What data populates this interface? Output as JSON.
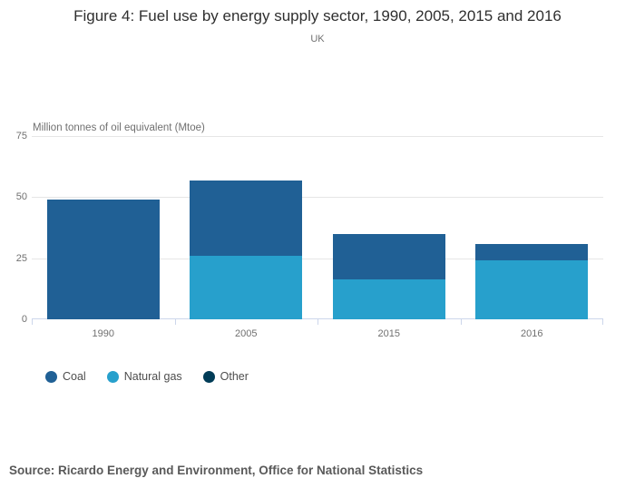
{
  "header": {
    "title": "Figure 4: Fuel use by energy supply sector, 1990, 2005, 2015 and 2016",
    "subtitle": "UK"
  },
  "chart_data": {
    "type": "bar",
    "stacked": true,
    "title": "Figure 4: Fuel use by energy supply sector, 1990, 2005, 2015 and 2016",
    "subtitle": "UK",
    "categories": [
      "1990",
      "2005",
      "2015",
      "2016"
    ],
    "series": [
      {
        "name": "Coal",
        "color": "#206095",
        "values": [
          49,
          31,
          18.5,
          7
        ]
      },
      {
        "name": "Natural gas",
        "color": "#27A0CC",
        "values": [
          0,
          26,
          16.5,
          24
        ]
      },
      {
        "name": "Other",
        "color": "#003C57",
        "values": [
          0,
          0,
          0,
          0
        ]
      }
    ],
    "stack_order_top_to_bottom": [
      "Coal",
      "Natural gas",
      "Other"
    ],
    "stack_totals": [
      49,
      57,
      35,
      31
    ],
    "xlabel": "",
    "ylabel": "Million tonnes of oil equivalent (Mtoe)",
    "ylim": [
      0,
      75
    ],
    "yticks": [
      0,
      25,
      50,
      75
    ],
    "grid": true,
    "legend_position": "bottom-left",
    "legend": [
      "Coal",
      "Natural gas",
      "Other"
    ]
  },
  "footer": {
    "source": "Source: Ricardo Energy and Environment, Office for National Statistics"
  },
  "colors": {
    "gridline": "#e6e6e6",
    "axis_line": "#ccd6eb",
    "title_text": "#2f2f2f",
    "muted_text": "#707070",
    "legend_text": "#4d4d4d",
    "source_text": "#595959"
  }
}
